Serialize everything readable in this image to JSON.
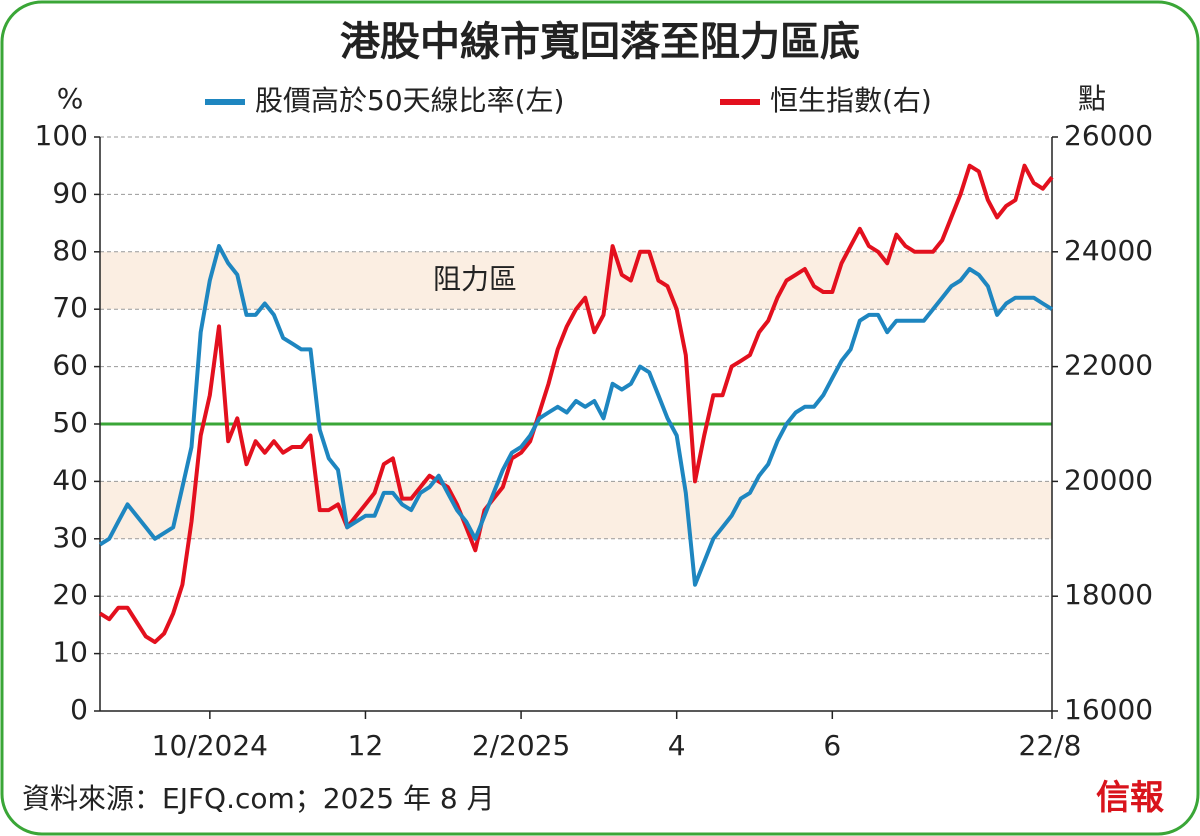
{
  "chart_data": {
    "type": "line",
    "title": "港股中線市寬回落至阻力區底",
    "ylabel": "%",
    "y2label": "點",
    "annotation": "阻力區",
    "source": "資料來源：EJFQ.com；2025 年 8 月",
    "logo": "信報",
    "legend": "top",
    "grid": true,
    "bands": [
      [
        70,
        80
      ],
      [
        30,
        40
      ]
    ],
    "band_color": "#fbeee2",
    "reference_line": {
      "value": 50,
      "color": "#3aa637"
    },
    "ylim": [
      0,
      100
    ],
    "yticks": [
      0,
      10,
      20,
      30,
      40,
      50,
      60,
      70,
      80,
      90,
      100
    ],
    "y2lim": [
      16000,
      26000
    ],
    "y2ticks": [
      16000,
      18000,
      20000,
      22000,
      24000,
      26000
    ],
    "categories": [
      null,
      null,
      null,
      null,
      null,
      null,
      null,
      null,
      null,
      null,
      null,
      null,
      "10/2024",
      null,
      null,
      null,
      null,
      null,
      null,
      null,
      null,
      null,
      null,
      null,
      null,
      null,
      null,
      null,
      null,
      "12",
      null,
      null,
      null,
      null,
      null,
      null,
      null,
      null,
      null,
      null,
      null,
      null,
      null,
      null,
      null,
      null,
      "2/2025",
      null,
      null,
      null,
      null,
      null,
      null,
      null,
      null,
      null,
      null,
      null,
      null,
      null,
      null,
      null,
      null,
      "4",
      null,
      null,
      null,
      null,
      null,
      null,
      null,
      null,
      null,
      null,
      null,
      null,
      null,
      null,
      null,
      null,
      "6",
      null,
      null,
      null,
      null,
      null,
      null,
      null,
      null,
      null,
      null,
      null,
      null,
      null,
      null,
      null,
      null,
      null,
      null,
      null,
      null,
      null,
      null,
      null,
      "22/8"
    ],
    "series": [
      {
        "name": "股價高於50天線比率(左)",
        "color": "#1e86c0",
        "values": [
          29,
          30,
          33,
          36,
          34,
          32,
          30,
          31,
          32,
          39,
          46,
          66,
          75,
          81,
          78,
          76,
          69,
          69,
          71,
          69,
          65,
          64,
          63,
          63,
          49,
          44,
          42,
          32,
          33,
          34,
          34,
          38,
          38,
          36,
          35,
          38,
          39,
          41,
          38,
          35,
          33,
          30,
          34,
          38,
          42,
          45,
          46,
          48,
          51,
          52,
          53,
          52,
          54,
          53,
          54,
          51,
          57,
          56,
          57,
          60,
          59,
          55,
          51,
          48,
          38,
          22,
          26,
          30,
          32,
          34,
          37,
          38,
          41,
          43,
          47,
          50,
          52,
          53,
          53,
          55,
          58,
          61,
          63,
          68,
          69,
          69,
          66,
          68,
          68,
          68,
          68,
          70,
          72,
          74,
          75,
          77,
          76,
          74,
          69,
          71,
          72,
          72,
          72,
          71,
          70
        ]
      },
      {
        "name": "恒生指數(右)",
        "color": "#e3101e",
        "axis": "y2",
        "values": [
          17700,
          17600,
          17800,
          17800,
          17550,
          17300,
          17200,
          17350,
          17700,
          18200,
          19300,
          20800,
          21500,
          22700,
          20700,
          21100,
          20300,
          20700,
          20500,
          20700,
          20500,
          20600,
          20600,
          20800,
          19500,
          19500,
          19600,
          19200,
          19400,
          19600,
          19800,
          20300,
          20400,
          19700,
          19700,
          19900,
          20100,
          20000,
          19900,
          19600,
          19200,
          18800,
          19500,
          19700,
          19900,
          20400,
          20500,
          20700,
          21200,
          21700,
          22300,
          22700,
          23000,
          23200,
          22600,
          22900,
          24100,
          23600,
          23500,
          24000,
          24000,
          23500,
          23400,
          23000,
          22200,
          20000,
          20800,
          21500,
          21500,
          22000,
          22100,
          22200,
          22600,
          22800,
          23200,
          23500,
          23600,
          23700,
          23400,
          23300,
          23300,
          23800,
          24100,
          24400,
          24100,
          24000,
          23800,
          24300,
          24100,
          24000,
          24000,
          24000,
          24200,
          24600,
          25000,
          25500,
          25400,
          24900,
          24600,
          24800,
          24900,
          25500,
          25200,
          25100,
          25300
        ]
      }
    ]
  }
}
